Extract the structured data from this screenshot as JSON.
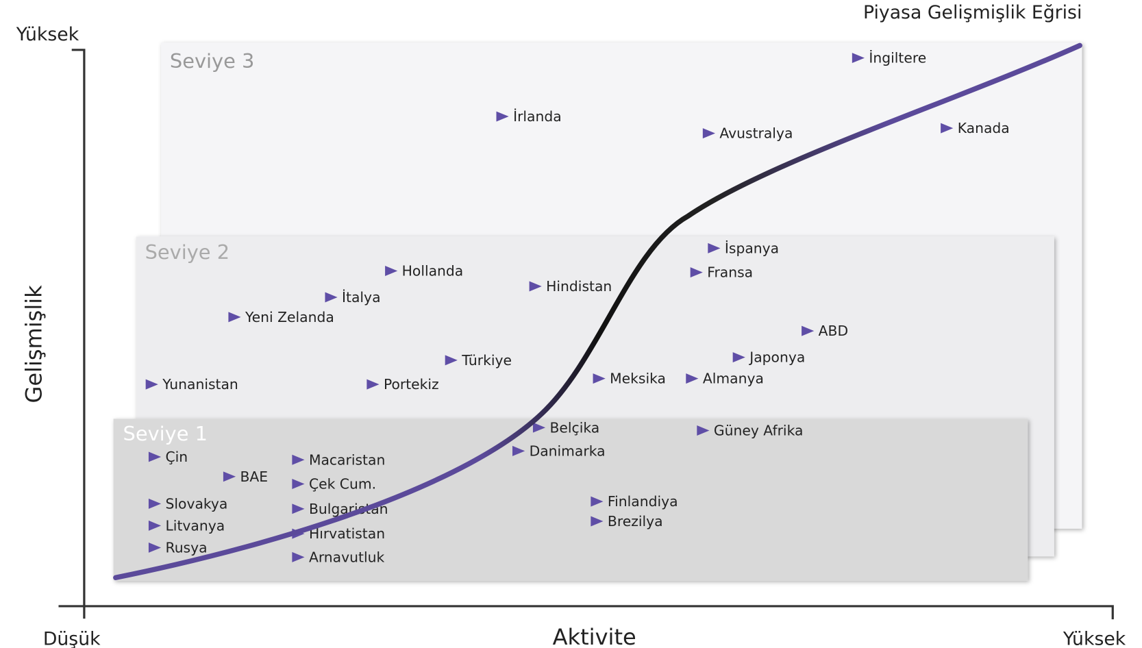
{
  "title": "Piyasa Gelişmişlik Eğrisi",
  "y_axis": {
    "label": "Gelişmişlik",
    "high": "Yüksek"
  },
  "x_axis": {
    "label": "Aktivite",
    "low": "Düşük",
    "high": "Yüksek"
  },
  "levels": [
    {
      "name": "Seviye 3",
      "countries": [
        "İngiltere",
        "İrlanda",
        "Avustralya",
        "Kanada"
      ]
    },
    {
      "name": "Seviye 2",
      "countries": [
        "İspanya",
        "Hollanda",
        "Fransa",
        "Hindistan",
        "İtalya",
        "Yeni Zelanda",
        "ABD",
        "Türkiye",
        "Japonya",
        "Yunanistan",
        "Portekiz",
        "Meksika",
        "Almanya"
      ]
    },
    {
      "name": "Seviye 1",
      "countries": [
        "Belçika",
        "Güney Afrika",
        "Danimarka",
        "Çin",
        "Macaristan",
        "BAE",
        "Çek Cum.",
        "Slovakya",
        "Bulgaristan",
        "Litvanya",
        "Hırvatistan",
        "Rusya",
        "Arnavutluk",
        "Finlandiya",
        "Brezilya"
      ]
    }
  ]
}
